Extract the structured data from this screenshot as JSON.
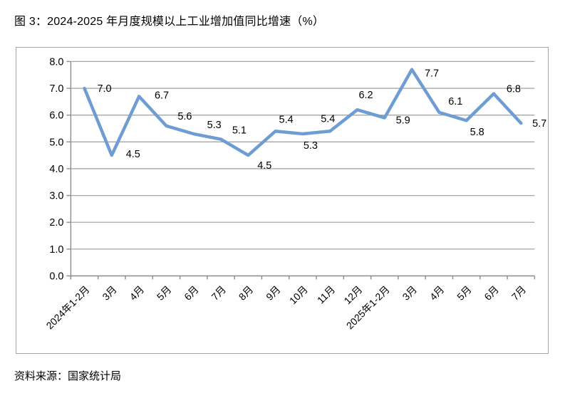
{
  "title": "图 3：2024-2025 年月度规模以上工业增加值同比增速（%）",
  "source_note": "资料来源：国家统计局",
  "chart_data": {
    "type": "line",
    "title": "2024-2025 年月度规模以上工业增加值同比增速（%）",
    "categories": [
      "2024年1-2月",
      "3月",
      "4月",
      "5月",
      "6月",
      "7月",
      "8月",
      "9月",
      "10月",
      "11月",
      "12月",
      "2025年1-2月",
      "3月",
      "4月",
      "5月",
      "6月",
      "7月"
    ],
    "values": [
      7.0,
      4.5,
      6.7,
      5.6,
      5.3,
      5.1,
      4.5,
      5.4,
      5.3,
      5.4,
      6.2,
      5.9,
      7.7,
      6.1,
      5.8,
      6.8,
      5.7
    ],
    "data_labels": [
      "7.0",
      "4.5",
      "6.7",
      "5.6",
      "5.3",
      "5.1",
      "4.5",
      "5.4",
      "5.3",
      "5.4",
      "6.2",
      "5.9",
      "7.7",
      "6.1",
      "5.8",
      "6.8",
      "5.7"
    ],
    "ylim": [
      0.0,
      8.0
    ],
    "ytick_step": 1.0,
    "ytick_labels": [
      "0.0",
      "1.0",
      "2.0",
      "3.0",
      "4.0",
      "5.0",
      "6.0",
      "7.0",
      "8.0"
    ],
    "xlabel": "",
    "ylabel": "",
    "grid": true,
    "legend": false,
    "colors": {
      "line": "#6e9dd4",
      "gridline": "#a6a6a6",
      "axis": "#8c8c8c",
      "chart_border": "#a6a6a6",
      "text": "#000000"
    }
  }
}
